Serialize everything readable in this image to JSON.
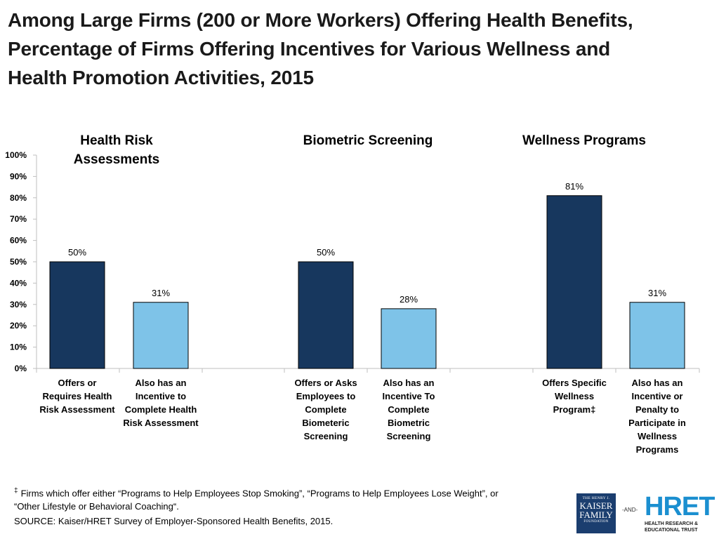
{
  "title_lines": [
    "Among Large Firms (200 or More Workers) Offering Health Benefits,",
    "Percentage of Firms Offering Incentives for Various Wellness and",
    "Health Promotion Activities, 2015"
  ],
  "colors": {
    "dark": "#17375e",
    "light": "#7ec3e8",
    "axis": "#bfbfbf"
  },
  "chart_data": {
    "type": "bar",
    "title": "Among Large Firms (200 or More Workers) Offering Health Benefits, Percentage of Firms Offering Incentives for Various Wellness and Health Promotion Activities, 2015",
    "ylim": [
      0,
      100
    ],
    "yticks": [
      "0%",
      "10%",
      "20%",
      "30%",
      "40%",
      "50%",
      "60%",
      "70%",
      "80%",
      "90%",
      "100%"
    ],
    "groups": [
      {
        "name_lines": [
          "Health Risk",
          "Assessments"
        ],
        "bars": [
          {
            "value": 50,
            "label": "50%",
            "shade": "dark",
            "category_lines": [
              "Offers or",
              "Requires Health",
              "Risk Assessment"
            ]
          },
          {
            "value": 31,
            "label": "31%",
            "shade": "light",
            "category_lines": [
              "Also has an",
              "Incentive to",
              "Complete Health",
              "Risk Assessment"
            ]
          }
        ]
      },
      {
        "name_lines": [
          "Biometric Screening"
        ],
        "bars": [
          {
            "value": 50,
            "label": "50%",
            "shade": "dark",
            "category_lines": [
              "Offers or Asks",
              "Employees to",
              "Complete",
              "Biometeric",
              "Screening"
            ]
          },
          {
            "value": 28,
            "label": "28%",
            "shade": "light",
            "category_lines": [
              "Also has an",
              "Incentive To",
              "Complete",
              "Biometric",
              "Screening"
            ]
          }
        ]
      },
      {
        "name_lines": [
          "Wellness Programs"
        ],
        "bars": [
          {
            "value": 81,
            "label": "81%",
            "shade": "dark",
            "category_lines": [
              "Offers Specific",
              "Wellness",
              "Program‡"
            ]
          },
          {
            "value": 31,
            "label": "31%",
            "shade": "light",
            "category_lines": [
              "Also has an",
              "Incentive or",
              "Penalty to",
              "Participate in",
              "Wellness",
              "Programs"
            ]
          }
        ]
      }
    ]
  },
  "footnote": {
    "symbol": "‡",
    "line1": "Firms which offer either “Programs to Help Employees Stop Smoking”, “Programs to Help Employees Lose Weight”, or",
    "line2": "“Other Lifestyle  or Behavioral Coaching“."
  },
  "source": "SOURCE: Kaiser/HRET Survey of Employer-Sponsored Health Benefits, 2015.",
  "logos": {
    "kff_line1": "THE HENRY J.",
    "kff_line2": "KAISER",
    "kff_line3": "FAMILY",
    "kff_line4": "FOUNDATION",
    "and": "-AND-",
    "hret": "HRET",
    "hret_sub1": "HEALTH RESEARCH &",
    "hret_sub2": "EDUCATIONAL TRUST"
  }
}
